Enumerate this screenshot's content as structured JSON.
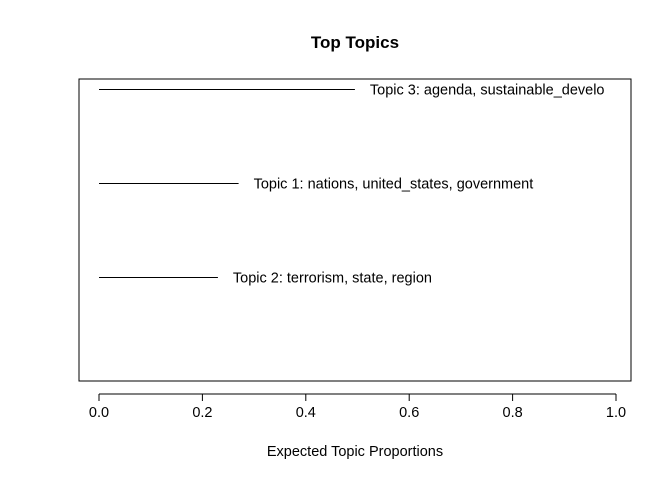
{
  "chart_data": {
    "type": "bar",
    "orientation": "horizontal",
    "title": "Top Topics",
    "xlabel": "Expected Topic Proportions",
    "ylabel": "",
    "xlim": [
      0.0,
      1.0
    ],
    "x_ticks": [
      "0.0",
      "0.2",
      "0.4",
      "0.6",
      "0.8",
      "1.0"
    ],
    "grid": false,
    "bars": [
      {
        "label": "Topic 3: agenda, sustainable_develo",
        "value": 0.495
      },
      {
        "label": "Topic 1: nations, united_states, government",
        "value": 0.27
      },
      {
        "label": "Topic 2: terrorism, state, region",
        "value": 0.23
      }
    ]
  }
}
